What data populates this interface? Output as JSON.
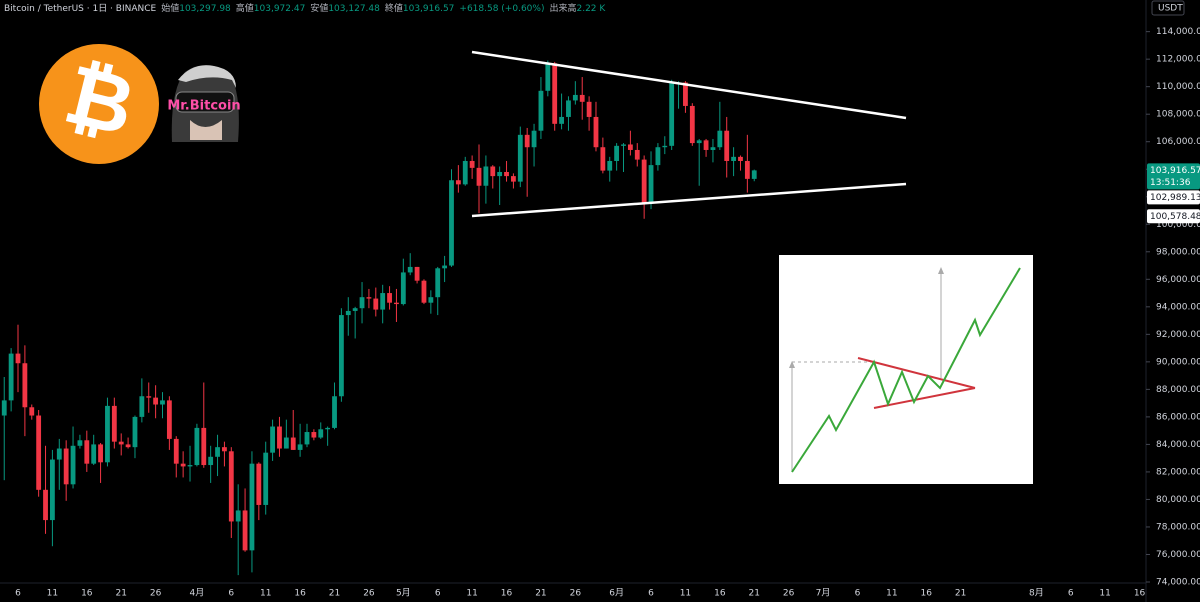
{
  "header": {
    "symbol": "Bitcoin / TetherUS · 1日 · BINANCE",
    "fields": [
      {
        "label": "始値",
        "value": "103,297.98"
      },
      {
        "label": "高値",
        "value": "103,972.47"
      },
      {
        "label": "安値",
        "value": "103,127.48"
      },
      {
        "label": "終値",
        "value": "103,916.57"
      }
    ],
    "change": "+618.58 (+0.60%)",
    "volume_label": "出来高",
    "volume": "2.22 K",
    "avatar_name": "Mr.Bitcoin",
    "bitcoin_logo": "₿"
  },
  "chart_data": {
    "type": "candlestick",
    "y_unit": "USDT",
    "up_color": "#089981",
    "down_color": "#f23645",
    "categories": [
      null,
      null,
      "6",
      null,
      null,
      null,
      null,
      "11",
      null,
      null,
      null,
      null,
      "16",
      null,
      null,
      null,
      null,
      "21",
      null,
      null,
      null,
      null,
      "26",
      null,
      null,
      null,
      null,
      null,
      "4月",
      null,
      null,
      null,
      null,
      "6",
      null,
      null,
      null,
      null,
      "11",
      null,
      null,
      null,
      null,
      "16",
      null,
      null,
      null,
      null,
      "21",
      null,
      null,
      null,
      null,
      "26",
      null,
      null,
      null,
      null,
      "5月",
      null,
      null,
      null,
      null,
      "6",
      null,
      null,
      null,
      null,
      "11",
      null,
      null,
      null,
      null,
      "16",
      null,
      null,
      null,
      null,
      "21",
      null,
      null,
      null,
      null,
      "26",
      null,
      null,
      null,
      null,
      null,
      "6月",
      null,
      null,
      null,
      null,
      "6",
      null,
      null,
      null,
      null,
      "11",
      null,
      null,
      null,
      null,
      "16",
      null,
      null,
      null,
      null,
      "21",
      null,
      null,
      null,
      null,
      "26",
      null,
      null,
      null,
      null,
      "7月",
      null,
      null,
      null,
      null,
      "6",
      null,
      null,
      null,
      null,
      "11",
      null,
      null,
      null,
      null,
      "16",
      null,
      null,
      null,
      null,
      "21",
      null,
      null,
      null,
      null,
      null,
      null,
      null,
      null,
      null,
      null,
      "8月",
      null,
      null,
      null,
      null,
      "6",
      null,
      null,
      null,
      null,
      "11",
      null,
      null,
      null,
      null,
      "16"
    ],
    "open": [
      86100,
      87200,
      90600,
      89900,
      86700,
      86100,
      80700,
      78500,
      82900,
      83700,
      81100,
      83900,
      84300,
      82600,
      84000,
      82700,
      86800,
      84200,
      84000,
      83800,
      86000,
      87500,
      87400,
      86900,
      87200,
      84400,
      82600,
      82400,
      82500,
      85200,
      82500,
      83100,
      83800,
      83500,
      78400,
      79200,
      76300,
      82600,
      79600,
      83400,
      85300,
      83700,
      84500,
      83600,
      84000,
      84900,
      84500,
      85100,
      85200,
      87500,
      93400,
      93700,
      93900,
      94700,
      94600,
      93800,
      95000,
      94300,
      94200,
      96500,
      96900,
      95900,
      94300,
      94700,
      96800,
      97000,
      103200,
      102900,
      104600,
      104100,
      102800,
      104200,
      103500,
      103800,
      103500,
      103100,
      106500,
      105600,
      106800,
      109700,
      111700,
      107300,
      107800,
      109000,
      109400,
      108900,
      107800,
      105600,
      103900,
      104600,
      105700,
      105800,
      105400,
      104700,
      101500,
      104300,
      105600,
      105700,
      110300,
      110300,
      108600,
      105900,
      106100,
      105400,
      105600,
      106800,
      104600,
      104900,
      104600,
      103297.98,
      null,
      null,
      null,
      null,
      null,
      null,
      null,
      null,
      null,
      null,
      null,
      null,
      null,
      null,
      null,
      null,
      null,
      null,
      null,
      null,
      null,
      null,
      null,
      null,
      null,
      null,
      null,
      null,
      null,
      null,
      null,
      null,
      null,
      null,
      null,
      null,
      null,
      null,
      null,
      null,
      null,
      null,
      null,
      null,
      null,
      null,
      null,
      null,
      null,
      null,
      null,
      null,
      null,
      null,
      null,
      null
    ],
    "high": [
      88900,
      91000,
      92700,
      91200,
      86900,
      86500,
      83900,
      83600,
      84400,
      84300,
      85300,
      84700,
      85000,
      84700,
      84100,
      87400,
      87400,
      84800,
      84500,
      86100,
      88800,
      88500,
      88300,
      87800,
      87500,
      84600,
      83500,
      83900,
      85500,
      88500,
      83900,
      84700,
      84200,
      83800,
      81100,
      80800,
      83500,
      82700,
      84200,
      85800,
      86000,
      85800,
      86500,
      85500,
      85500,
      85100,
      85600,
      85300,
      88500,
      93900,
      94700,
      94000,
      95800,
      95300,
      95400,
      95600,
      95500,
      95300,
      97500,
      97900,
      96900,
      96000,
      95200,
      96900,
      97700,
      104000,
      104300,
      104900,
      105000,
      105800,
      105000,
      104300,
      104200,
      104600,
      103700,
      107100,
      107000,
      107300,
      110700,
      111900,
      111800,
      109500,
      109300,
      110400,
      110700,
      109300,
      108900,
      106300,
      104900,
      105900,
      105900,
      106800,
      105900,
      105000,
      105300,
      105900,
      106400,
      110500,
      110400,
      110400,
      108800,
      106200,
      106200,
      106200,
      108900,
      107800,
      105600,
      105000,
      106500,
      103972.47,
      null,
      null,
      null,
      null,
      null,
      null,
      null,
      null,
      null,
      null,
      null,
      null,
      null,
      null,
      null,
      null,
      null,
      null,
      null,
      null,
      null,
      null,
      null,
      null,
      null,
      null,
      null,
      null,
      null,
      null,
      null,
      null,
      null,
      null,
      null,
      null,
      null,
      null,
      null,
      null,
      null,
      null,
      null,
      null,
      null,
      null,
      null,
      null,
      null,
      null,
      null,
      null,
      null,
      null,
      null,
      null
    ],
    "low": [
      81400,
      86400,
      87800,
      84600,
      85800,
      80200,
      77500,
      76600,
      80700,
      79900,
      80800,
      83700,
      82000,
      82500,
      81200,
      82400,
      83700,
      83200,
      83700,
      83000,
      85600,
      86300,
      85900,
      85900,
      83600,
      81600,
      81600,
      81300,
      82400,
      82300,
      81200,
      81700,
      82400,
      77200,
      74500,
      76200,
      74700,
      78500,
      78900,
      82800,
      83100,
      83700,
      83600,
      83100,
      83800,
      84300,
      84400,
      83900,
      85100,
      87100,
      91900,
      91700,
      92800,
      93900,
      93300,
      92800,
      93800,
      92900,
      94100,
      96300,
      95700,
      94200,
      93500,
      93400,
      95800,
      96900,
      102300,
      102800,
      103300,
      100800,
      101500,
      102600,
      101400,
      103100,
      102600,
      102700,
      102000,
      104200,
      106200,
      109300,
      106800,
      106900,
      106800,
      108700,
      107600,
      106800,
      105300,
      103700,
      103100,
      103900,
      103800,
      105000,
      104200,
      100400,
      101100,
      103900,
      105100,
      105400,
      108400,
      108100,
      105700,
      102800,
      104900,
      104500,
      105400,
      103400,
      103500,
      103900,
      102300,
      103127.48,
      null,
      null,
      null,
      null,
      null,
      null,
      null,
      null,
      null,
      null,
      null,
      null,
      null,
      null,
      null,
      null,
      null,
      null,
      null,
      null,
      null,
      null,
      null,
      null,
      null,
      null,
      null,
      null,
      null,
      null,
      null,
      null,
      null,
      null,
      null,
      null,
      null,
      null,
      null,
      null,
      null,
      null,
      null,
      null,
      null,
      null,
      null,
      null,
      null,
      null,
      null,
      null,
      null,
      null,
      null,
      null
    ],
    "close": [
      87200,
      90600,
      89900,
      86700,
      86100,
      80700,
      78500,
      82900,
      83700,
      81100,
      83900,
      84300,
      82600,
      84000,
      82700,
      86800,
      84200,
      84000,
      83800,
      86000,
      87500,
      87400,
      86900,
      87200,
      84400,
      82600,
      82400,
      82500,
      85200,
      82500,
      83100,
      83800,
      83500,
      78400,
      79200,
      76300,
      82600,
      79600,
      83400,
      85300,
      83700,
      84500,
      83600,
      84000,
      84900,
      84500,
      85100,
      85200,
      87500,
      93400,
      93700,
      93900,
      94700,
      94600,
      93800,
      95000,
      94300,
      94200,
      96500,
      96900,
      95900,
      94300,
      94700,
      96800,
      97000,
      103200,
      102900,
      104600,
      104100,
      102800,
      104200,
      103500,
      103800,
      103500,
      103100,
      106500,
      105600,
      106800,
      109700,
      111700,
      107300,
      107800,
      109000,
      109400,
      108900,
      107800,
      105600,
      103900,
      104600,
      105700,
      105800,
      105400,
      104700,
      101500,
      104300,
      105600,
      105700,
      110300,
      110300,
      108600,
      105900,
      106100,
      105400,
      105600,
      106800,
      104600,
      104900,
      104600,
      103300,
      103916.57,
      null,
      null,
      null,
      null,
      null,
      null,
      null,
      null,
      null,
      null,
      null,
      null,
      null,
      null,
      null,
      null,
      null,
      null,
      null,
      null,
      null,
      null,
      null,
      null,
      null,
      null,
      null,
      null,
      null,
      null,
      null,
      null,
      null,
      null,
      null,
      null,
      null,
      null,
      null,
      null,
      null,
      null,
      null,
      null,
      null,
      null,
      null,
      null,
      null,
      null,
      null,
      null,
      null,
      null,
      null,
      null
    ],
    "ylim": [
      74000,
      116300
    ],
    "yticks": [
      {
        "value": 74000,
        "label": "74,000.00"
      },
      {
        "value": 76000,
        "label": "76,000.00"
      },
      {
        "value": 78000,
        "label": "78,000.00"
      },
      {
        "value": 80000,
        "label": "80,000.00"
      },
      {
        "value": 82000,
        "label": "82,000.00"
      },
      {
        "value": 84000,
        "label": "84,000.00"
      },
      {
        "value": 86000,
        "label": "86,000.00"
      },
      {
        "value": 88000,
        "label": "88,000.00"
      },
      {
        "value": 90000,
        "label": "90,000.00"
      },
      {
        "value": 92000,
        "label": "92,000.00"
      },
      {
        "value": 94000,
        "label": "94,000.00"
      },
      {
        "value": 96000,
        "label": "96,000.00"
      },
      {
        "value": 98000,
        "label": "98,000.00"
      },
      {
        "value": 100000,
        "label": "100,000.00"
      },
      {
        "value": 102000,
        "label": "102,000.00"
      },
      {
        "value": 104000,
        "label": "104,000.00"
      },
      {
        "value": 106000,
        "label": "106,000.00"
      },
      {
        "value": 108000,
        "label": "108,000.00"
      },
      {
        "value": 110000,
        "label": "110,000.00"
      },
      {
        "value": 112000,
        "label": "112,000.00"
      },
      {
        "value": 114000,
        "label": "114,000.00"
      }
    ],
    "price_labels": [
      {
        "value": 103916.57,
        "label": "103,916.57",
        "countdown": "13:51:36",
        "color": "#089981"
      },
      {
        "value": 102989.13,
        "label": "102,989.13",
        "color": "#ffffff"
      },
      {
        "value": 100578.48,
        "label": "100,578.48",
        "color": "#ffffff"
      }
    ]
  }
}
